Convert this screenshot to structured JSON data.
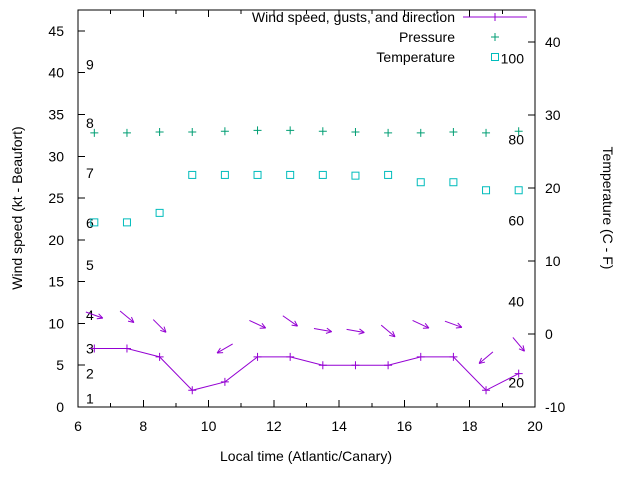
{
  "chart_data": {
    "type": "line",
    "title": "",
    "xlabel": "Local time (Atlantic/Canary)",
    "ylabel_left": "Wind speed (kt - Beaufort)",
    "ylabel_right": "Temperature (C - F)",
    "grid": false,
    "legend_position": "top-right-inside",
    "x_range": [
      6,
      20
    ],
    "x_ticks": [
      6,
      8,
      10,
      12,
      14,
      16,
      18,
      20
    ],
    "x_minor_ticks": [
      7,
      9,
      11,
      13,
      15,
      17,
      19
    ],
    "left_axis": {
      "range_kt": [
        0,
        47.5
      ],
      "ticks_kt": [
        0,
        5,
        10,
        15,
        20,
        25,
        30,
        35,
        40,
        45
      ]
    },
    "right_axis": {
      "range_c": [
        -10,
        44.4
      ],
      "ticks_c": [
        -10,
        0,
        10,
        20,
        30,
        40
      ]
    },
    "beaufort_labels": [
      {
        "text": "1",
        "kt": 1
      },
      {
        "text": "2",
        "kt": 4
      },
      {
        "text": "3",
        "kt": 7
      },
      {
        "text": "4",
        "kt": 11
      },
      {
        "text": "5",
        "kt": 17
      },
      {
        "text": "6",
        "kt": 22
      },
      {
        "text": "7",
        "kt": 28
      },
      {
        "text": "8",
        "kt": 34
      },
      {
        "text": "9",
        "kt": 41
      }
    ],
    "fahrenheit_labels": [
      {
        "text": "20",
        "f": 20
      },
      {
        "text": "40",
        "f": 40
      },
      {
        "text": "60",
        "f": 60
      },
      {
        "text": "80",
        "f": 80
      },
      {
        "text": "100",
        "f": 100
      }
    ],
    "hours": [
      6.5,
      7.5,
      8.5,
      9.5,
      10.5,
      11.5,
      12.5,
      13.5,
      14.5,
      15.5,
      16.5,
      17.5,
      18.5,
      19.5
    ],
    "legend": [
      {
        "label": "Wind speed, gusts, and direction",
        "style": "line-plus",
        "color": "#9400d3"
      },
      {
        "label": "Pressure",
        "style": "plus",
        "color": "#009e73"
      },
      {
        "label": "Temperature",
        "style": "square",
        "color": "#00bcbc"
      }
    ],
    "series": [
      {
        "name": "wind_speed",
        "axis": "left",
        "unit": "kt",
        "style": "line-plus",
        "color": "#9400d3",
        "values": [
          7,
          7,
          6,
          2,
          3,
          6,
          6,
          5,
          5,
          5,
          6,
          6,
          2,
          4
        ]
      },
      {
        "name": "wind_gusts_direction",
        "axis": "left",
        "unit": "kt",
        "style": "arrow",
        "color": "#9400d3",
        "values": [
          11,
          10.8,
          9.7,
          null,
          7,
          9.9,
          10.3,
          9.2,
          9.1,
          9.1,
          9.9,
          9.9,
          5.9,
          7.5
        ],
        "angles_deg": [
          20,
          40,
          45,
          null,
          150,
          25,
          35,
          10,
          10,
          40,
          25,
          20,
          140,
          50
        ]
      },
      {
        "name": "pressure",
        "axis": "left",
        "unit": "plotted-on-kt-scale",
        "style": "plus",
        "color": "#009e73",
        "values": [
          32.8,
          32.8,
          32.9,
          32.9,
          33.0,
          33.1,
          33.1,
          33.0,
          32.9,
          32.8,
          32.8,
          32.9,
          32.8,
          33.0
        ]
      },
      {
        "name": "temperature",
        "axis": "right",
        "unit": "C",
        "style": "square",
        "color": "#00bcbc",
        "values": [
          15.3,
          15.3,
          16.6,
          21.8,
          21.8,
          21.8,
          21.8,
          21.8,
          21.7,
          21.8,
          20.8,
          20.8,
          19.7,
          19.7
        ]
      }
    ]
  }
}
